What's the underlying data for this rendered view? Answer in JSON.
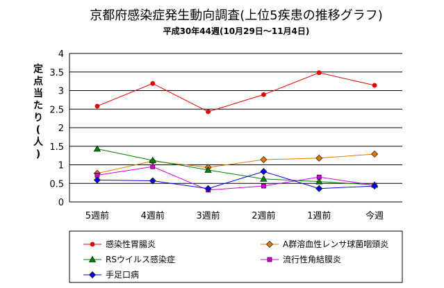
{
  "chart_data": {
    "type": "line",
    "title": "京都府感染症発生動向調査(上位5疾患の推移グラフ)",
    "subtitle": "平成30年44週(10月29日～11月4日)",
    "ylabel": "定点当たり(人)",
    "xlabel": "",
    "categories": [
      "5週前",
      "4週前",
      "3週前",
      "2週前",
      "1週前",
      "今週"
    ],
    "ylim": [
      0,
      4
    ],
    "yticks": [
      "0",
      "0.5",
      "1",
      "1.5",
      "2",
      "2.5",
      "3",
      "3.5",
      "4"
    ],
    "grid": true,
    "legend_position": "bottom",
    "series": [
      {
        "name": "感染性胃腸炎",
        "color": "#e00000",
        "marker": "circle",
        "values": [
          2.58,
          3.19,
          2.43,
          2.89,
          3.48,
          3.14
        ]
      },
      {
        "name": "A群溶血性レンサ球菌咽頭炎",
        "color": "#e07800",
        "marker": "diamond",
        "values": [
          0.77,
          1.1,
          0.93,
          1.14,
          1.18,
          1.29
        ]
      },
      {
        "name": "RSウイルス感染症",
        "color": "#008000",
        "marker": "triangle",
        "values": [
          1.43,
          1.12,
          0.86,
          0.62,
          0.55,
          0.46
        ]
      },
      {
        "name": "流行性角結膜炎",
        "color": "#d000d0",
        "marker": "square",
        "values": [
          0.72,
          0.95,
          0.32,
          0.43,
          0.67,
          0.45
        ]
      },
      {
        "name": "手足口病",
        "color": "#0000e0",
        "marker": "diamond",
        "values": [
          0.59,
          0.57,
          0.36,
          0.82,
          0.36,
          0.43
        ]
      }
    ]
  }
}
